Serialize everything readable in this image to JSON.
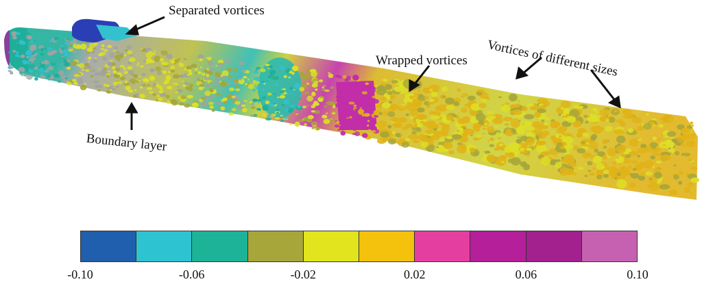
{
  "annotations": {
    "separated": "Separated vortices",
    "wrapped": "Wrapped vortices",
    "different_sizes": "Vortices of different sizes",
    "boundary": "Boundary layer"
  },
  "colorbar": {
    "colors": [
      "#1f5fae",
      "#2ec3d1",
      "#1db398",
      "#a7a63a",
      "#e2e41e",
      "#f4c20d",
      "#e43fa0",
      "#b51f9a",
      "#a3208f",
      "#c661b2"
    ],
    "ticks": [
      "-0.10",
      "-0.06",
      "-0.02",
      "0.02",
      "0.06",
      "0.10"
    ]
  },
  "scene_colors": {
    "nose_blue": "#2a3fb5",
    "teal": "#1fae9a",
    "cyan": "#33c1cf",
    "gray": "#9fa3a3",
    "olive": "#a7a63a",
    "yellow": "#dcdf27",
    "gold": "#e0b318",
    "magenta": "#c12ea8"
  }
}
